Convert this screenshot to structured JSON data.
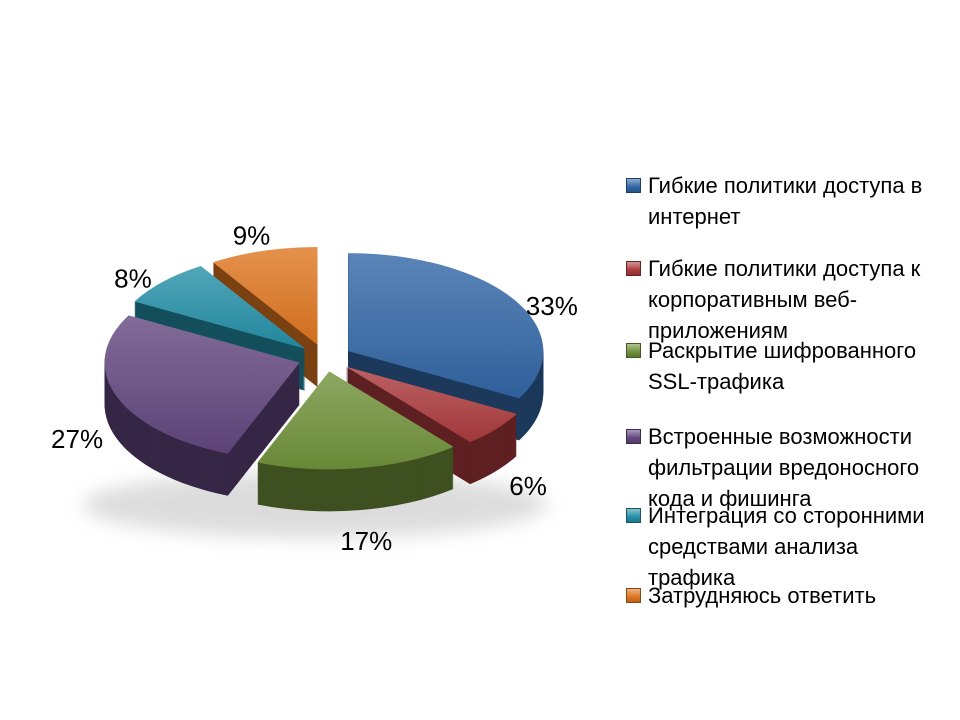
{
  "page": {
    "background": "#ffffff"
  },
  "chart_data": {
    "type": "pie",
    "style": "3d-exploded",
    "title": "",
    "legend_position": "right",
    "data_labels": "percent-outside",
    "slices": [
      {
        "label": "Гибкие политики доступа в интернет",
        "legend_label": "Гибкие политики доступа в\nинтернет",
        "value": 33,
        "pct_label": "33%",
        "color": "#3266A6"
      },
      {
        "label": "Гибкие политики доступа к корпоративным веб-приложениям",
        "legend_label": "Гибкие политики доступа к\nкорпоративным веб-\nприложениям",
        "value": 6,
        "pct_label": "6%",
        "color": "#AC3B3D"
      },
      {
        "label": "Раскрытие шифрованного SSL-трафика",
        "legend_label": "Раскрытие шифрованного\nSSL-трафика",
        "value": 17,
        "pct_label": "17%",
        "color": "#71923B"
      },
      {
        "label": "Встроенные возможности фильтрации вредоносного кода и фишинга",
        "legend_label": "Встроенные возможности\nфильтрации вредоносного\nкода и фишинга",
        "value": 27,
        "pct_label": "27%",
        "color": "#63477F"
      },
      {
        "label": "Интеграция со сторонними средствами анализа трафика",
        "legend_label": "Интеграция со сторонними\nсредствами анализа\nтрафика",
        "value": 8,
        "pct_label": "8%",
        "color": "#2590A8"
      },
      {
        "label": "Затрудняюсь ответить",
        "legend_label": "Затрудняюсь ответить",
        "value": 9,
        "pct_label": "9%",
        "color": "#DF7620"
      }
    ]
  }
}
